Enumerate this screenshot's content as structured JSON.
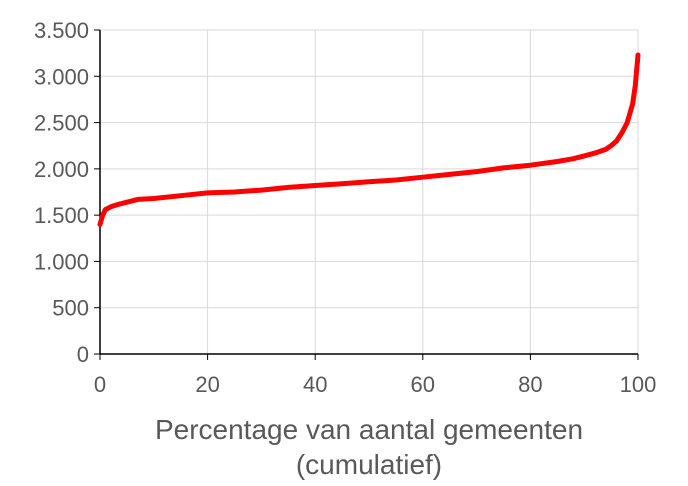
{
  "chart_data": {
    "type": "line",
    "title": "",
    "xlabel_line1": "Percentage van aantal gemeenten",
    "xlabel_line2": "(cumulatief)",
    "ylabel": "",
    "xlim": [
      0,
      100
    ],
    "ylim": [
      0,
      3500
    ],
    "x_ticks": [
      0,
      20,
      40,
      60,
      80,
      100
    ],
    "x_tick_labels": [
      "0",
      "20",
      "40",
      "60",
      "80",
      "100"
    ],
    "y_ticks": [
      0,
      500,
      1000,
      1500,
      2000,
      2500,
      3000,
      3500
    ],
    "y_tick_labels": [
      "0",
      "500",
      "1.000",
      "1.500",
      "2.000",
      "2.500",
      "3.000",
      "3.500"
    ],
    "grid": true,
    "legend": "none",
    "series_color": "#ff0000",
    "grid_color": "#d9d9d9",
    "axis_color": "#000000",
    "series": [
      {
        "x": [
          0,
          0.5,
          1,
          2,
          3,
          5,
          7,
          10,
          15,
          20,
          25,
          30,
          35,
          40,
          45,
          50,
          55,
          60,
          65,
          70,
          75,
          80,
          85,
          88,
          90,
          92,
          94,
          95,
          96,
          97,
          98,
          99,
          99.5,
          100
        ],
        "values": [
          1400,
          1500,
          1560,
          1590,
          1610,
          1640,
          1670,
          1680,
          1710,
          1740,
          1750,
          1770,
          1800,
          1820,
          1840,
          1860,
          1880,
          1910,
          1940,
          1970,
          2010,
          2040,
          2080,
          2110,
          2140,
          2170,
          2210,
          2250,
          2300,
          2390,
          2500,
          2700,
          2900,
          3230
        ]
      }
    ]
  }
}
